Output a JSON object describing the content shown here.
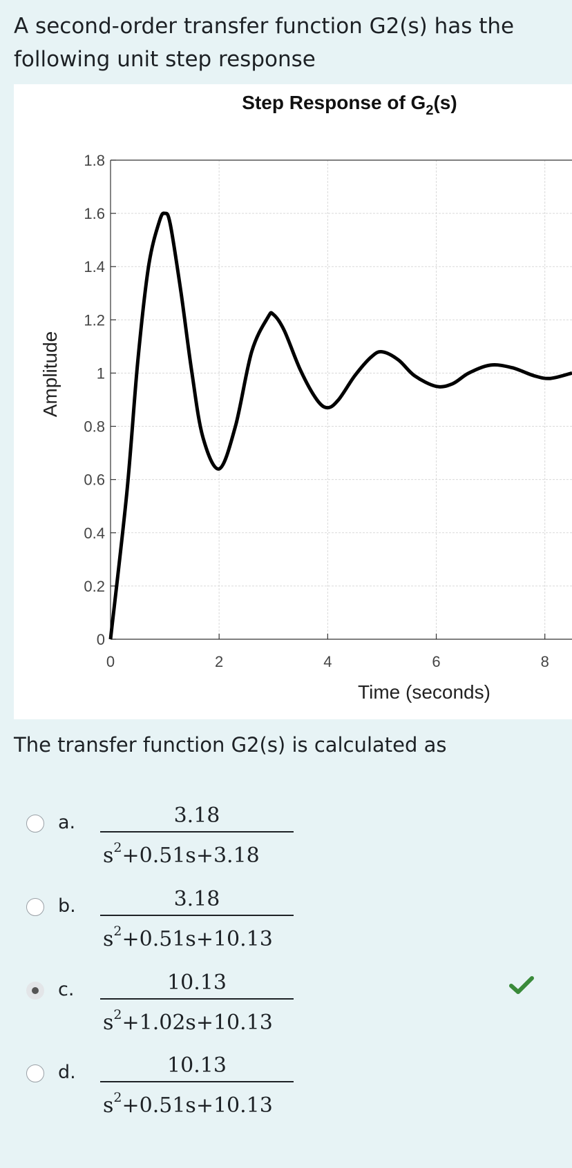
{
  "question": {
    "intro": "A second-order transfer function G2(s) has the following unit step response",
    "prompt": "The transfer function G2(s) is calculated as"
  },
  "chart_data": {
    "type": "line",
    "title": "Step Response of G2(s)",
    "xlabel": "Time (seconds)",
    "ylabel": "Amplitude",
    "xlim": [
      0,
      8.5
    ],
    "ylim": [
      0,
      1.8
    ],
    "xticks": [
      "0",
      "2",
      "4",
      "6",
      "8"
    ],
    "yticks": [
      "0",
      "0.2",
      "0.4",
      "0.6",
      "0.8",
      "1",
      "1.2",
      "1.4",
      "1.6",
      "1.8"
    ],
    "grid": true,
    "series": [
      {
        "x": [
          0,
          0.3,
          0.5,
          0.7,
          0.9,
          1.0,
          1.1,
          1.3,
          1.5,
          1.7,
          2.0,
          2.3,
          2.6,
          2.9,
          3.0,
          3.2,
          3.5,
          3.8,
          4.0,
          4.2,
          4.5,
          4.8,
          5.0,
          5.3,
          5.6,
          6.0,
          6.3,
          6.6,
          7.0,
          7.4,
          7.8,
          8.1,
          8.5
        ],
        "y": [
          0,
          0.55,
          1.04,
          1.4,
          1.57,
          1.6,
          1.56,
          1.3,
          1.0,
          0.76,
          0.64,
          0.8,
          1.08,
          1.21,
          1.22,
          1.16,
          1.01,
          0.9,
          0.87,
          0.9,
          0.99,
          1.06,
          1.08,
          1.05,
          0.99,
          0.95,
          0.96,
          1.0,
          1.03,
          1.02,
          0.99,
          0.98,
          1.0
        ]
      }
    ]
  },
  "options": [
    {
      "letter": "a.",
      "numerator": "3.18",
      "den_prefix": "s",
      "den_power": "2",
      "den_rest": "+0.51s+3.18",
      "selected": false,
      "correct": false
    },
    {
      "letter": "b.",
      "numerator": "3.18",
      "den_prefix": "s",
      "den_power": "2",
      "den_rest": "+0.51s+10.13",
      "selected": false,
      "correct": false
    },
    {
      "letter": "c.",
      "numerator": "10.13",
      "den_prefix": "s",
      "den_power": "2",
      "den_rest": "+1.02s+10.13",
      "selected": true,
      "correct": true
    },
    {
      "letter": "d.",
      "numerator": "10.13",
      "den_prefix": "s",
      "den_power": "2",
      "den_rest": "+0.51s+10.13",
      "selected": false,
      "correct": false
    }
  ],
  "colors": {
    "background": "#e7f3f5",
    "line": "#000000",
    "grid": "#d9d9d9",
    "check": "#3a8a3a"
  },
  "icons": {
    "correct": "check-icon"
  }
}
